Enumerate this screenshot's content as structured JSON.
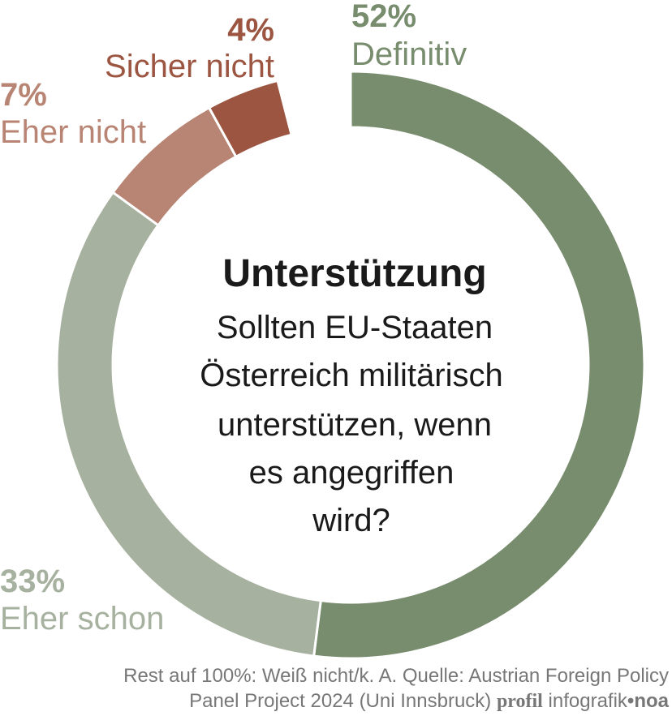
{
  "chart_data": {
    "type": "pie",
    "donut": true,
    "title": "Unterstützung",
    "subtitle_lines": [
      "Sollten EU-Staaten",
      "Österreich militärisch",
      "unterstützen, wenn",
      "es angegriffen",
      "wird?"
    ],
    "slices": [
      {
        "label": "Definitiv",
        "value": 52,
        "value_label": "52%",
        "color": "#788c6e"
      },
      {
        "label": "Eher schon",
        "value": 33,
        "value_label": "33%",
        "color": "#a7b19f"
      },
      {
        "label": "Eher nicht",
        "value": 7,
        "value_label": "7%",
        "color": "#b88473"
      },
      {
        "label": "Sicher nicht",
        "value": 4,
        "value_label": "4%",
        "color": "#9b5540"
      }
    ]
  },
  "footer": {
    "line1": "Rest auf 100%: Weiß nicht/k. A. Quelle: Austrian Foreign Policy",
    "line2": "Panel Project 2024 (Uni Innsbruck)",
    "brand": "profil",
    "credit": "infografik",
    "credit_sep": "•",
    "credit_author": "noa"
  }
}
